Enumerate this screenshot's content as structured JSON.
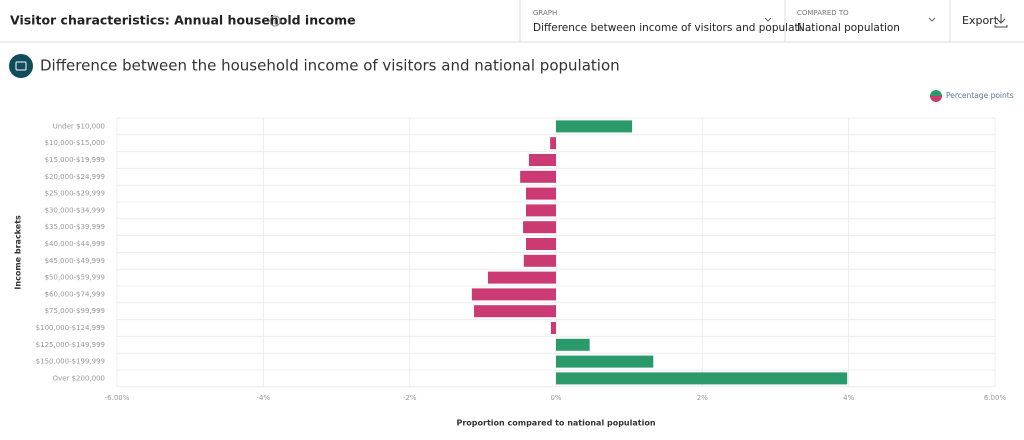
{
  "header": {
    "title": "Visitor characteristics: Annual household income",
    "graph_label": "GRAPH",
    "graph_value": "Difference between income of visitors and populati...",
    "compared_label": "COMPARED TO",
    "compared_value": "National population",
    "export": "Export"
  },
  "chart_heading": "Difference between the household income of visitors and national population",
  "chart_data": {
    "type": "bar",
    "orientation": "horizontal",
    "x_label": "Proportion compared to national population",
    "y_label": "Income brackets",
    "categories": [
      "Under $10,000",
      "$10,000-$15,000",
      "$15,000-$19,999",
      "$20,000-$24,999",
      "$25,000-$29,999",
      "$30,000-$34,999",
      "$35,000-$39,999",
      "$40,000-$44,999",
      "$45,000-$49,999",
      "$50,000-$59,999",
      "$60,000-$74,999",
      "$75,000-$99,999",
      "$100,000-$124,999",
      "$125,000-$149,999",
      "$150,000-$199,999",
      "Over $200,000"
    ],
    "series": [
      {
        "name": "Percentage points",
        "positive_color": "#2a9a6a",
        "negative_color": "#cc3a74",
        "values": [
          1.04,
          -0.08,
          -0.37,
          -0.49,
          -0.41,
          -0.41,
          -0.45,
          -0.41,
          -0.44,
          -0.93,
          -1.15,
          -1.12,
          -0.07,
          0.46,
          1.33,
          3.98
        ]
      }
    ],
    "xlim": [
      -6,
      6
    ],
    "xticks": [
      {
        "value": -6,
        "label": "-6.00%"
      },
      {
        "value": -4,
        "label": "-4%"
      },
      {
        "value": -2,
        "label": "-2%"
      },
      {
        "value": 0,
        "label": "0%"
      },
      {
        "value": 2,
        "label": "2%"
      },
      {
        "value": 4,
        "label": "4%"
      },
      {
        "value": 6,
        "label": "6.00%"
      }
    ],
    "grid": true,
    "legend": "top-right"
  }
}
